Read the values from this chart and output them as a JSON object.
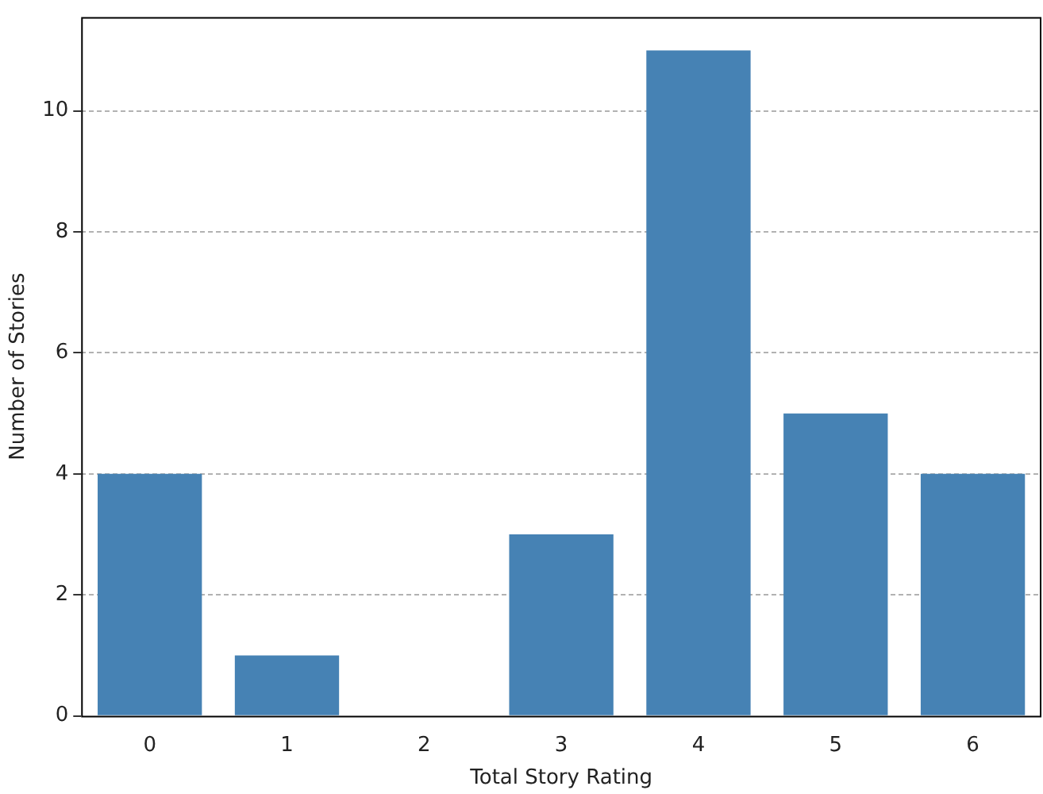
{
  "chart_data": {
    "type": "bar",
    "xlabel": "Total Story Rating",
    "ylabel": "Number of Stories",
    "categories": [
      "0",
      "1",
      "2",
      "3",
      "4",
      "5",
      "6"
    ],
    "values": [
      4,
      1,
      0,
      3,
      11,
      5,
      4
    ],
    "color": "#4682b4",
    "ylim": [
      0,
      11.55
    ],
    "yticks": [
      0,
      2,
      4,
      6,
      8,
      10
    ],
    "grid": "y"
  }
}
